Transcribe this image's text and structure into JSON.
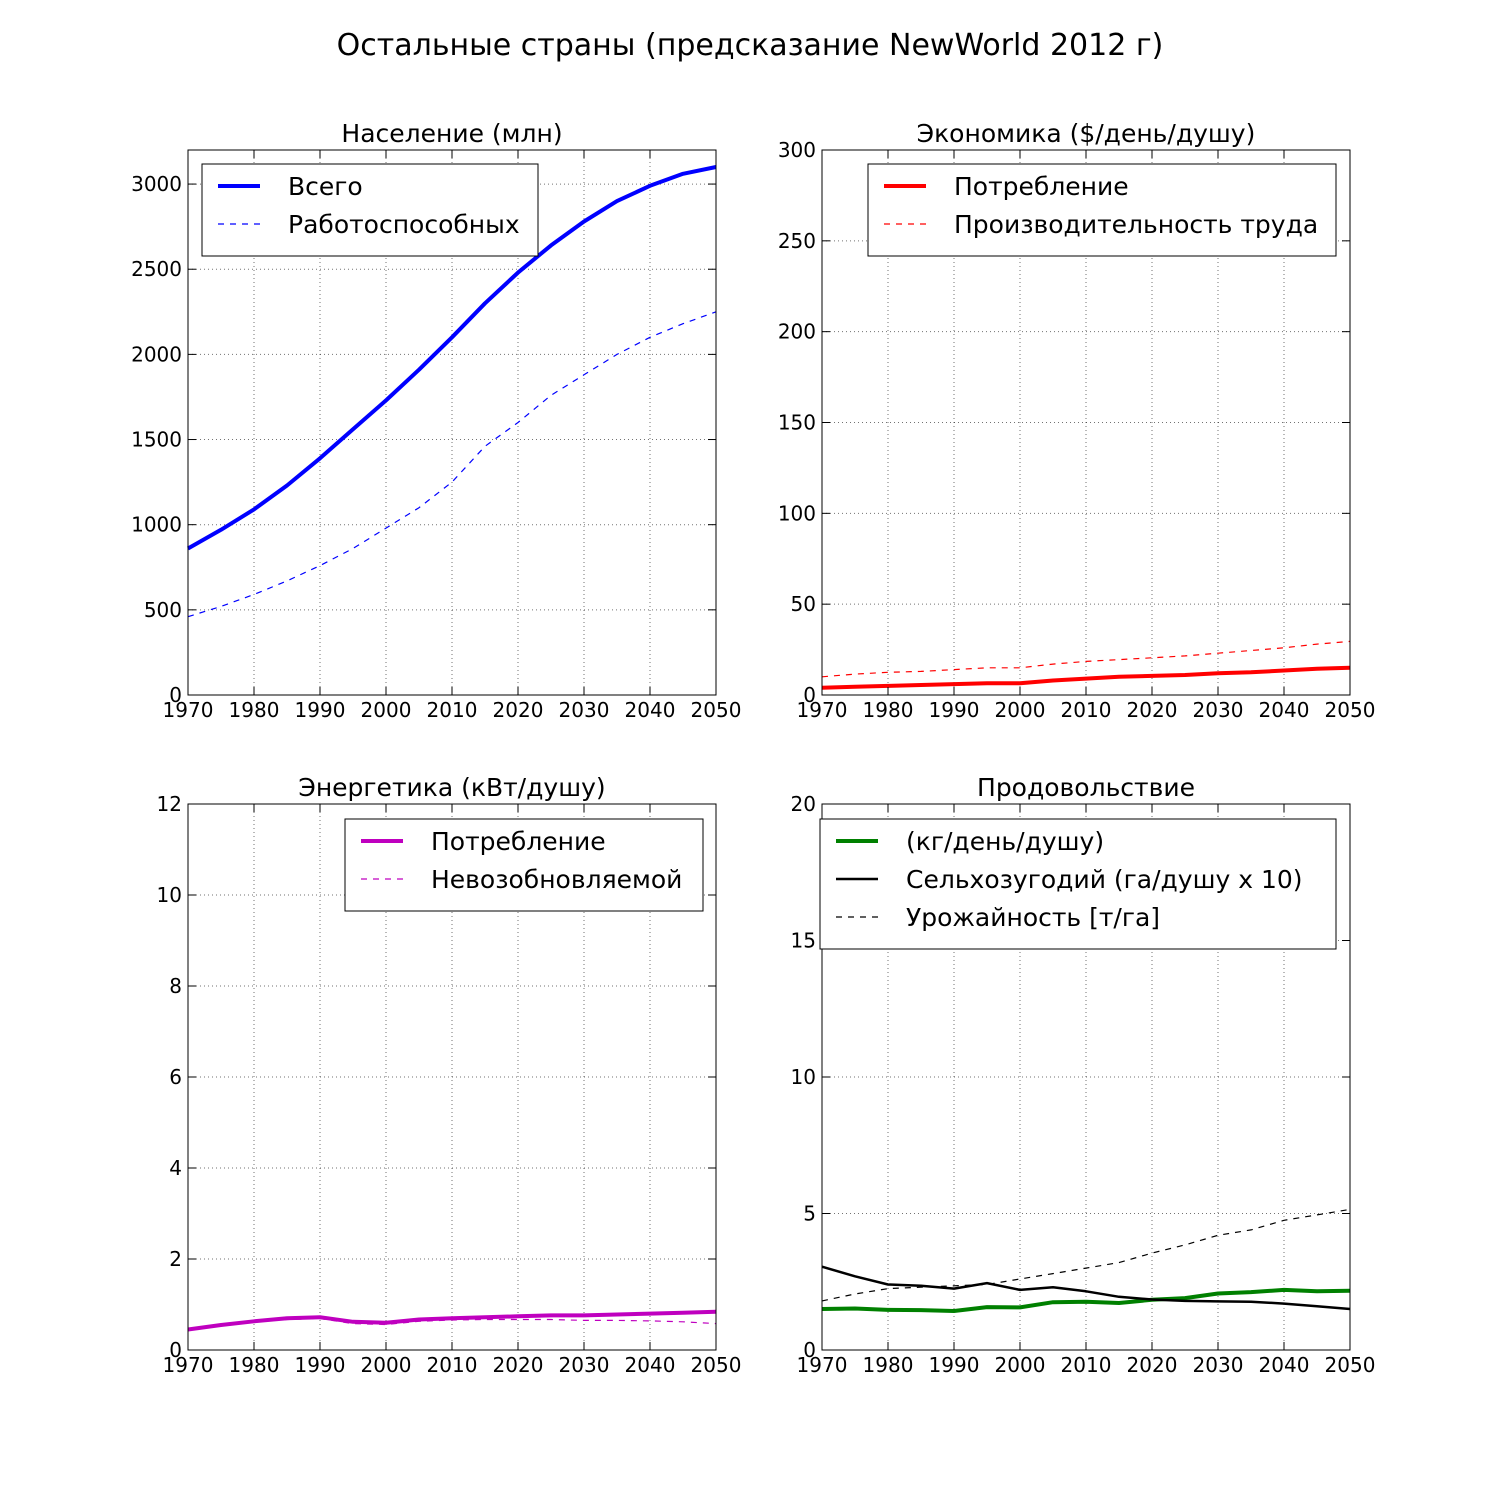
{
  "figure_title": "Остальные страны (предсказание NewWorld 2012 г)",
  "chart_data": [
    {
      "type": "line",
      "title": "Население (млн)",
      "xlim": [
        1970,
        2050
      ],
      "ylim": [
        0,
        3200
      ],
      "xticks": [
        1970,
        1980,
        1990,
        2000,
        2010,
        2020,
        2030,
        2040,
        2050
      ],
      "yticks": [
        0,
        500,
        1000,
        1500,
        2000,
        2500,
        3000
      ],
      "grid": true,
      "legend_position": "upper-left",
      "series": [
        {
          "name": "Всего",
          "color": "#0000ff",
          "style": "solid",
          "width": 4,
          "x": [
            1970,
            1975,
            1980,
            1985,
            1990,
            1995,
            2000,
            2005,
            2010,
            2015,
            2020,
            2025,
            2030,
            2035,
            2040,
            2045,
            2050
          ],
          "y": [
            860,
            970,
            1090,
            1230,
            1390,
            1560,
            1730,
            1910,
            2100,
            2300,
            2480,
            2640,
            2780,
            2900,
            2990,
            3060,
            3100
          ]
        },
        {
          "name": "Работоспособных",
          "color": "#0000ff",
          "style": "dashed",
          "width": 1.2,
          "x": [
            1970,
            1975,
            1980,
            1985,
            1990,
            1995,
            2000,
            2005,
            2010,
            2015,
            2020,
            2025,
            2030,
            2035,
            2040,
            2045,
            2050
          ],
          "y": [
            460,
            520,
            590,
            670,
            760,
            860,
            980,
            1100,
            1250,
            1460,
            1600,
            1760,
            1880,
            2000,
            2100,
            2180,
            2250
          ]
        }
      ]
    },
    {
      "type": "line",
      "title": "Экономика ($/день/душу)",
      "xlim": [
        1970,
        2050
      ],
      "ylim": [
        0,
        300
      ],
      "xticks": [
        1970,
        1980,
        1990,
        2000,
        2010,
        2020,
        2030,
        2040,
        2050
      ],
      "yticks": [
        0,
        50,
        100,
        150,
        200,
        250,
        300
      ],
      "grid": true,
      "legend_position": "upper-right",
      "series": [
        {
          "name": "Потребление",
          "color": "#ff0000",
          "style": "solid",
          "width": 4,
          "x": [
            1970,
            1975,
            1980,
            1985,
            1990,
            1995,
            2000,
            2005,
            2010,
            2015,
            2020,
            2025,
            2030,
            2035,
            2040,
            2045,
            2050
          ],
          "y": [
            4,
            4.5,
            5,
            5.5,
            6,
            6.5,
            6.5,
            8,
            9,
            10,
            10.5,
            11,
            12,
            12.5,
            13.5,
            14.5,
            15
          ]
        },
        {
          "name": "Производительность труда",
          "color": "#ff0000",
          "style": "dashed",
          "width": 1.2,
          "x": [
            1970,
            1975,
            1980,
            1985,
            1990,
            1995,
            2000,
            2005,
            2010,
            2015,
            2020,
            2025,
            2030,
            2035,
            2040,
            2045,
            2050
          ],
          "y": [
            10,
            11.5,
            12.5,
            13,
            14,
            15,
            15,
            17,
            18.5,
            19.5,
            20.5,
            21.5,
            23,
            24.5,
            26,
            28,
            29.5
          ]
        }
      ]
    },
    {
      "type": "line",
      "title": "Энергетика (кВт/душу)",
      "xlim": [
        1970,
        2050
      ],
      "ylim": [
        0,
        12
      ],
      "xticks": [
        1970,
        1980,
        1990,
        2000,
        2010,
        2020,
        2030,
        2040,
        2050
      ],
      "yticks": [
        0,
        2,
        4,
        6,
        8,
        10,
        12
      ],
      "grid": true,
      "legend_position": "upper-right",
      "series": [
        {
          "name": "Потребление",
          "color": "#bf00bf",
          "style": "solid",
          "width": 4,
          "x": [
            1970,
            1975,
            1980,
            1985,
            1990,
            1995,
            2000,
            2005,
            2010,
            2015,
            2020,
            2025,
            2030,
            2035,
            2040,
            2045,
            2050
          ],
          "y": [
            0.45,
            0.55,
            0.63,
            0.7,
            0.72,
            0.62,
            0.6,
            0.67,
            0.7,
            0.72,
            0.74,
            0.76,
            0.76,
            0.78,
            0.8,
            0.82,
            0.84
          ]
        },
        {
          "name": "Невозобновляемой",
          "color": "#bf00bf",
          "style": "dashed",
          "width": 1.2,
          "x": [
            1970,
            1975,
            1980,
            1985,
            1990,
            1995,
            2000,
            2005,
            2010,
            2015,
            2020,
            2025,
            2030,
            2035,
            2040,
            2045,
            2050
          ],
          "y": [
            0.45,
            0.54,
            0.62,
            0.67,
            0.69,
            0.58,
            0.56,
            0.63,
            0.66,
            0.67,
            0.67,
            0.67,
            0.65,
            0.65,
            0.64,
            0.62,
            0.58
          ]
        }
      ]
    },
    {
      "type": "line",
      "title": "Продовольствие",
      "xlim": [
        1970,
        2050
      ],
      "ylim": [
        0,
        20
      ],
      "xticks": [
        1970,
        1980,
        1990,
        2000,
        2010,
        2020,
        2030,
        2040,
        2050
      ],
      "yticks": [
        0,
        5,
        10,
        15,
        20
      ],
      "grid": true,
      "legend_position": "upper-center",
      "series": [
        {
          "name": "(кг/день/душу)",
          "color": "#008000",
          "style": "solid",
          "width": 4,
          "x": [
            1970,
            1975,
            1980,
            1985,
            1990,
            1995,
            2000,
            2005,
            2010,
            2015,
            2020,
            2025,
            2030,
            2035,
            2040,
            2045,
            2050
          ],
          "y": [
            1.5,
            1.52,
            1.47,
            1.46,
            1.43,
            1.57,
            1.56,
            1.75,
            1.77,
            1.72,
            1.84,
            1.9,
            2.07,
            2.12,
            2.2,
            2.15,
            2.17
          ]
        },
        {
          "name": "Сельхозугодий (га/душу x 10)",
          "color": "#000000",
          "style": "solid",
          "width": 2.5,
          "x": [
            1970,
            1975,
            1980,
            1985,
            1990,
            1995,
            2000,
            2005,
            2010,
            2015,
            2020,
            2025,
            2030,
            2035,
            2040,
            2045,
            2050
          ],
          "y": [
            3.05,
            2.7,
            2.4,
            2.35,
            2.25,
            2.45,
            2.2,
            2.3,
            2.15,
            1.95,
            1.85,
            1.8,
            1.78,
            1.77,
            1.7,
            1.6,
            1.5
          ]
        },
        {
          "name": "Урожайность [т/га]",
          "color": "#000000",
          "style": "dashed",
          "width": 1.2,
          "x": [
            1970,
            1975,
            1980,
            1985,
            1990,
            1995,
            2000,
            2005,
            2010,
            2015,
            2020,
            2025,
            2030,
            2035,
            2040,
            2045,
            2050
          ],
          "y": [
            1.8,
            2.05,
            2.25,
            2.3,
            2.35,
            2.4,
            2.6,
            2.8,
            3.0,
            3.2,
            3.55,
            3.85,
            4.2,
            4.4,
            4.75,
            4.95,
            5.15
          ]
        }
      ]
    }
  ]
}
